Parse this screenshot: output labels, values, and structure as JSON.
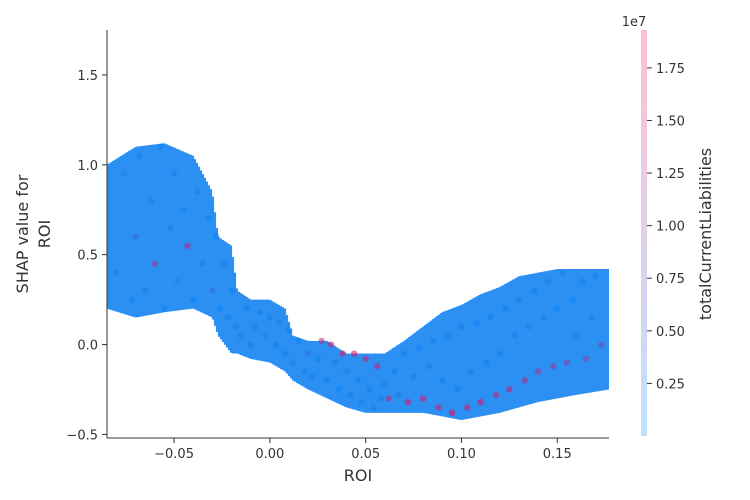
{
  "chart_data": {
    "type": "scatter",
    "title": "",
    "xlabel": "ROI",
    "ylabel_lines": [
      "SHAP value for",
      "ROI"
    ],
    "xlim": [
      -0.085,
      0.177
    ],
    "ylim": [
      -0.52,
      1.75
    ],
    "x_ticks": [
      -0.05,
      0.0,
      0.05,
      0.1,
      0.15
    ],
    "x_tick_labels": [
      "−0.05",
      "0.00",
      "0.05",
      "0.10",
      "0.15"
    ],
    "y_ticks": [
      -0.5,
      0.0,
      0.5,
      1.0,
      1.5
    ],
    "y_tick_labels": [
      "−0.5",
      "0.0",
      "0.5",
      "1.0",
      "1.5"
    ],
    "grid": false,
    "colorbar": {
      "label": "totalCurrentLiabilities",
      "offset_text": "1e7",
      "range": [
        0.0,
        1.93
      ],
      "ticks": [
        0.25,
        0.5,
        0.75,
        1.0,
        1.25,
        1.5,
        1.75
      ],
      "tick_labels": [
        "0.25",
        "0.50",
        "0.75",
        "1.00",
        "1.25",
        "1.50",
        "1.75"
      ],
      "low_color": "#008bfb",
      "high_color": "#ff0051"
    },
    "series": [
      {
        "color_by": "totalCurrentLiabilities",
        "points": [
          [
            -0.08,
            0.4,
            0.1
          ],
          [
            -0.076,
            0.95,
            0.2
          ],
          [
            -0.072,
            0.25,
            0.1
          ],
          [
            -0.07,
            0.6,
            0.5
          ],
          [
            -0.068,
            1.05,
            0.1
          ],
          [
            -0.065,
            0.3,
            0.2
          ],
          [
            -0.062,
            0.8,
            0.1
          ],
          [
            -0.06,
            0.45,
            1.2
          ],
          [
            -0.057,
            1.1,
            0.1
          ],
          [
            -0.055,
            0.2,
            0.1
          ],
          [
            -0.052,
            0.65,
            0.3
          ],
          [
            -0.05,
            0.95,
            0.1
          ],
          [
            -0.048,
            0.35,
            0.2
          ],
          [
            -0.045,
            0.75,
            0.1
          ],
          [
            -0.043,
            0.55,
            1.5
          ],
          [
            -0.04,
            0.25,
            0.1
          ],
          [
            -0.038,
            0.85,
            0.2
          ],
          [
            -0.035,
            0.45,
            0.1
          ],
          [
            -0.032,
            0.7,
            0.1
          ],
          [
            -0.03,
            0.3,
            0.4
          ],
          [
            -0.028,
            0.6,
            0.1
          ],
          [
            -0.026,
            0.2,
            0.1
          ],
          [
            -0.024,
            0.45,
            0.2
          ],
          [
            -0.022,
            0.15,
            0.1
          ],
          [
            -0.02,
            0.3,
            0.1
          ],
          [
            -0.018,
            0.1,
            0.2
          ],
          [
            -0.015,
            0.05,
            0.1
          ],
          [
            -0.012,
            0.2,
            0.1
          ],
          [
            -0.01,
            0.0,
            0.3
          ],
          [
            -0.008,
            0.1,
            0.1
          ],
          [
            -0.005,
            0.18,
            0.1
          ],
          [
            -0.002,
            0.05,
            0.2
          ],
          [
            0.0,
            0.15,
            0.1
          ],
          [
            0.003,
            0.0,
            0.1
          ],
          [
            0.005,
            0.12,
            0.2
          ],
          [
            0.008,
            -0.05,
            0.1
          ],
          [
            0.01,
            0.08,
            0.1
          ],
          [
            0.012,
            -0.1,
            0.2
          ],
          [
            0.015,
            0.02,
            0.1
          ],
          [
            0.018,
            -0.15,
            0.1
          ],
          [
            0.02,
            -0.05,
            0.3
          ],
          [
            0.022,
            -0.18,
            0.1
          ],
          [
            0.025,
            -0.08,
            0.1
          ],
          [
            0.027,
            0.02,
            1.4
          ],
          [
            0.03,
            -0.2,
            0.1
          ],
          [
            0.032,
            0.0,
            1.6
          ],
          [
            0.034,
            -0.1,
            0.1
          ],
          [
            0.036,
            -0.25,
            0.1
          ],
          [
            0.038,
            -0.05,
            1.7
          ],
          [
            0.04,
            -0.15,
            0.2
          ],
          [
            0.042,
            -0.28,
            0.1
          ],
          [
            0.044,
            -0.05,
            1.8
          ],
          [
            0.046,
            -0.2,
            0.1
          ],
          [
            0.048,
            -0.32,
            0.1
          ],
          [
            0.05,
            -0.08,
            1.6
          ],
          [
            0.052,
            -0.25,
            0.1
          ],
          [
            0.054,
            -0.35,
            0.2
          ],
          [
            0.056,
            -0.12,
            1.5
          ],
          [
            0.058,
            -0.3,
            0.1
          ],
          [
            0.06,
            -0.22,
            0.1
          ],
          [
            0.062,
            -0.3,
            1.4
          ],
          [
            0.065,
            -0.15,
            0.1
          ],
          [
            0.067,
            -0.28,
            0.2
          ],
          [
            0.07,
            -0.05,
            0.1
          ],
          [
            0.072,
            -0.32,
            1.7
          ],
          [
            0.075,
            -0.18,
            0.1
          ],
          [
            0.078,
            -0.02,
            0.1
          ],
          [
            0.08,
            -0.3,
            1.8
          ],
          [
            0.083,
            -0.12,
            0.2
          ],
          [
            0.085,
            0.02,
            0.1
          ],
          [
            0.088,
            -0.35,
            1.6
          ],
          [
            0.09,
            -0.2,
            0.1
          ],
          [
            0.093,
            0.05,
            0.1
          ],
          [
            0.095,
            -0.38,
            1.9
          ],
          [
            0.098,
            -0.25,
            0.1
          ],
          [
            0.1,
            0.1,
            0.1
          ],
          [
            0.103,
            -0.35,
            1.7
          ],
          [
            0.105,
            -0.15,
            0.2
          ],
          [
            0.108,
            0.12,
            0.1
          ],
          [
            0.11,
            -0.32,
            1.8
          ],
          [
            0.113,
            -0.1,
            0.1
          ],
          [
            0.115,
            0.15,
            0.1
          ],
          [
            0.118,
            -0.28,
            1.5
          ],
          [
            0.12,
            -0.05,
            0.1
          ],
          [
            0.123,
            0.2,
            0.1
          ],
          [
            0.125,
            -0.25,
            1.6
          ],
          [
            0.128,
            0.05,
            0.1
          ],
          [
            0.13,
            0.25,
            0.2
          ],
          [
            0.133,
            -0.2,
            1.4
          ],
          [
            0.135,
            0.1,
            0.1
          ],
          [
            0.138,
            0.3,
            0.1
          ],
          [
            0.14,
            -0.15,
            1.3
          ],
          [
            0.143,
            0.15,
            0.1
          ],
          [
            0.145,
            0.35,
            0.2
          ],
          [
            0.148,
            -0.12,
            1.2
          ],
          [
            0.15,
            0.2,
            0.1
          ],
          [
            0.153,
            0.4,
            0.1
          ],
          [
            0.155,
            -0.1,
            1.1
          ],
          [
            0.158,
            0.25,
            0.1
          ],
          [
            0.16,
            0.05,
            0.2
          ],
          [
            0.163,
            0.35,
            0.1
          ],
          [
            0.165,
            -0.08,
            1.0
          ],
          [
            0.168,
            0.15,
            0.1
          ],
          [
            0.17,
            0.38,
            0.1
          ],
          [
            0.173,
            0.0,
            0.9
          ]
        ]
      }
    ]
  }
}
